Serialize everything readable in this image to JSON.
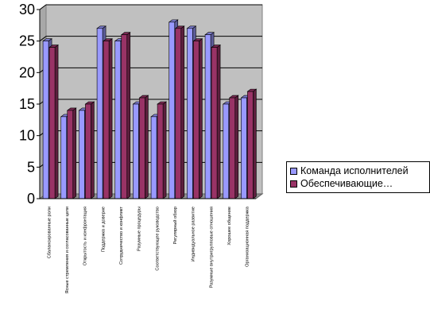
{
  "chart_data": {
    "type": "bar",
    "categories": [
      "Сбалансированные роли",
      "Ясные стремления и согласованные цели",
      "Открытость и конфронтация",
      "Поддержка и доверие",
      "Сотрудничество и конфликт",
      "Разумные процедуры",
      "Соответствующее руководство",
      "Регулярный обзор",
      "Индивидуальное развитие",
      "Разумные внутригрупповые отношения",
      "Хорошее общение",
      "Организационная поддержка"
    ],
    "series": [
      {
        "name": "Команда исполнителей",
        "color": "#9999ff",
        "values": [
          25,
          13,
          14,
          27,
          25,
          15,
          13,
          28,
          27,
          26,
          15,
          16
        ]
      },
      {
        "name": "Обеспечивающие…",
        "color": "#993366",
        "values": [
          24,
          14,
          15,
          25,
          26,
          16,
          15,
          27,
          25,
          24,
          16,
          17
        ]
      }
    ],
    "ylim": [
      0,
      30
    ],
    "yticks": [
      0,
      5,
      10,
      15,
      20,
      25,
      30
    ],
    "grid": true,
    "wall_color": "#c0c0c0",
    "legend_position": "right"
  }
}
